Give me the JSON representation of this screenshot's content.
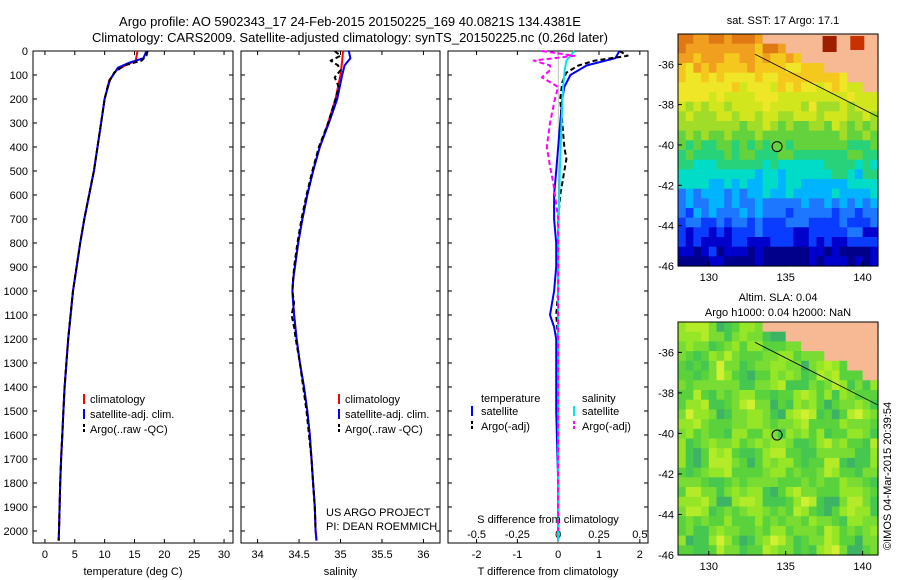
{
  "header": {
    "line1": "Argo profile: AO 5902343_17 24-Feb-2015 20150225_169 40.0821S 134.4381E",
    "line2": "Climatology: CARS2009. Satellite-adjusted climatology: synTS_20150225.nc (0.26d later)"
  },
  "depth_ticks": [
    0,
    100,
    200,
    300,
    400,
    500,
    600,
    700,
    800,
    900,
    1000,
    1100,
    1200,
    1300,
    1400,
    1500,
    1600,
    1700,
    1800,
    1900,
    2000
  ],
  "colors": {
    "clim": "#ff0000",
    "sat": "#0000ff",
    "argo": "#000000",
    "cyan": "#00e5ee",
    "magenta": "#ff00ff",
    "land": "#f6b994"
  },
  "chart_data": [
    {
      "type": "line",
      "id": "temperature",
      "xlabel": "temperature (deg C)",
      "xlim": [
        -2,
        31.5
      ],
      "ylim": [
        2050,
        0
      ],
      "xticks": [
        0,
        5,
        10,
        15,
        20,
        25,
        30
      ],
      "legend": [
        "climatology",
        "satellite-adj. clim.",
        "Argo(..raw -QC)"
      ],
      "series": [
        {
          "name": "climatology",
          "depth": [
            0,
            40,
            60,
            80,
            120,
            200,
            300,
            400,
            500,
            600,
            700,
            800,
            900,
            1000,
            1100,
            1200,
            1300,
            1400,
            1500,
            1600,
            1700,
            1800,
            1900,
            2000,
            2040
          ],
          "values": [
            15.5,
            15.2,
            13.5,
            12,
            10.8,
            10,
            9.4,
            8.8,
            8.2,
            7.4,
            6.6,
            5.9,
            5.3,
            4.7,
            4.3,
            3.9,
            3.6,
            3.3,
            3.1,
            2.9,
            2.7,
            2.55,
            2.45,
            2.35,
            2.3
          ]
        },
        {
          "name": "satellite-adj. clim.",
          "depth": [
            0,
            30,
            50,
            70,
            120,
            200,
            300,
            400,
            500,
            600,
            700,
            800,
            900,
            1000,
            1100,
            1200,
            1300,
            1400,
            1500,
            1600,
            1700,
            1800,
            1900,
            2000,
            2040
          ],
          "values": [
            17,
            16.5,
            14,
            12.2,
            10.9,
            10,
            9.4,
            8.8,
            8.2,
            7.4,
            6.6,
            5.9,
            5.3,
            4.7,
            4.3,
            3.9,
            3.6,
            3.3,
            3.1,
            2.9,
            2.7,
            2.55,
            2.45,
            2.35,
            2.3
          ]
        },
        {
          "name": "Argo(..raw -QC)",
          "depth": [
            0,
            20,
            40,
            60,
            90,
            130,
            200,
            300,
            400,
            500,
            600,
            700,
            800,
            900,
            1000,
            1100,
            1200,
            1300,
            1400,
            1500,
            1600,
            1700,
            1800,
            1900,
            2000,
            2040
          ],
          "values": [
            17.2,
            17,
            16.2,
            13.3,
            11.6,
            10.7,
            10,
            9.4,
            8.8,
            8.2,
            7.4,
            6.6,
            5.9,
            5.3,
            4.7,
            4.3,
            3.9,
            3.6,
            3.3,
            3.1,
            2.9,
            2.7,
            2.55,
            2.45,
            2.35,
            2.3
          ]
        }
      ]
    },
    {
      "type": "line",
      "id": "salinity",
      "xlabel": "salinity",
      "xlim": [
        33.8,
        36.2
      ],
      "ylim": [
        2050,
        0
      ],
      "xticks": [
        34,
        34.5,
        35,
        35.5,
        36
      ],
      "xticklabels": [
        "34",
        "34.5",
        "35",
        "35.5",
        "36"
      ],
      "legend": [
        "climatology",
        "satellite-adj. clim.",
        "Argo(..raw -QC)"
      ],
      "annotation": [
        "US ARGO PROJECT",
        "PI: DEAN ROEMMICH"
      ],
      "series": [
        {
          "name": "climatology",
          "depth": [
            0,
            40,
            100,
            200,
            300,
            400,
            500,
            600,
            700,
            800,
            900,
            950,
            1000,
            1050,
            1100,
            1200,
            1300,
            1400,
            1500,
            1600,
            1700,
            1800,
            1900,
            2000,
            2040
          ],
          "values": [
            35.03,
            35.02,
            35.0,
            34.94,
            34.85,
            34.75,
            34.67,
            34.6,
            34.54,
            34.49,
            34.45,
            34.43,
            34.42,
            34.43,
            34.44,
            34.47,
            34.51,
            34.56,
            34.6,
            34.63,
            34.65,
            34.67,
            34.69,
            34.7,
            34.71
          ]
        },
        {
          "name": "satellite-adj. clim.",
          "depth": [
            0,
            30,
            60,
            100,
            200,
            300,
            400,
            500,
            600,
            700,
            800,
            900,
            950,
            1000,
            1050,
            1100,
            1200,
            1300,
            1400,
            1500,
            1600,
            1700,
            1800,
            1900,
            2000,
            2040
          ],
          "values": [
            35.1,
            35.12,
            35.05,
            35.02,
            34.96,
            34.86,
            34.75,
            34.67,
            34.6,
            34.54,
            34.49,
            34.45,
            34.43,
            34.42,
            34.43,
            34.44,
            34.47,
            34.51,
            34.56,
            34.6,
            34.63,
            34.65,
            34.67,
            34.69,
            34.7,
            34.71
          ]
        },
        {
          "name": "Argo(..raw -QC)",
          "depth": [
            0,
            20,
            40,
            60,
            80,
            110,
            150,
            200,
            300,
            400,
            500,
            600,
            700,
            800,
            900,
            1000,
            1050,
            1100,
            1150,
            1200,
            1300,
            1400,
            1500,
            1600,
            1700,
            1800,
            1900,
            2000
          ],
          "values": [
            34.93,
            35.0,
            34.88,
            34.97,
            35.0,
            34.93,
            34.98,
            34.94,
            34.85,
            34.74,
            34.66,
            34.59,
            34.53,
            34.48,
            34.44,
            34.42,
            34.44,
            34.41,
            34.44,
            34.46,
            34.51,
            34.55,
            34.59,
            34.62,
            34.65,
            34.67,
            34.69,
            34.7
          ]
        }
      ]
    },
    {
      "type": "line",
      "id": "difference",
      "xlabel": "T difference from climatology",
      "xlabel_top": "S difference from climatology",
      "xlim": [
        -2.7,
        2.2
      ],
      "ylim": [
        2050,
        0
      ],
      "xticks": [
        -2,
        -1,
        0,
        1,
        2
      ],
      "xticks_top": [
        -0.5,
        -0.25,
        0,
        0.25,
        0.5
      ],
      "legend": {
        "temperature_heading": "temperature",
        "salinity_heading": "salinity",
        "items": [
          "satellite",
          "Argo(-adj)",
          "satellite",
          "Argo(-adj)"
        ]
      },
      "series": [
        {
          "name": "temperature satellite",
          "color": "sat",
          "depth": [
            0,
            30,
            60,
            100,
            150,
            200,
            300,
            400,
            500,
            600,
            700,
            800,
            900,
            1000,
            1100,
            1150,
            1200,
            1300,
            1500,
            1800,
            2040
          ],
          "values": [
            1.5,
            1.4,
            0.7,
            0.3,
            0.15,
            0.1,
            0.05,
            0.0,
            -0.05,
            -0.1,
            -0.1,
            -0.05,
            -0.05,
            -0.1,
            -0.2,
            -0.1,
            -0.05,
            -0.05,
            -0.05,
            0.0,
            0.0
          ]
        },
        {
          "name": "temperature Argo(-adj)",
          "color": "argo",
          "depth": [
            0,
            20,
            40,
            60,
            90,
            130,
            200,
            300,
            400,
            450,
            500,
            550,
            600,
            700,
            800,
            900,
            1000,
            1100,
            1200,
            1400,
            1600,
            1800,
            2000
          ],
          "values": [
            1.5,
            1.7,
            0.9,
            0.5,
            0.2,
            0.1,
            0.05,
            0.1,
            0.15,
            0.2,
            0.15,
            0.1,
            0.05,
            0.0,
            0.0,
            0.0,
            0.0,
            -0.05,
            0.0,
            0.0,
            0.0,
            0.0,
            0.0
          ]
        },
        {
          "name": "salinity satellite",
          "color": "cyan",
          "depth": [
            0,
            40,
            80,
            150,
            300,
            500,
            800,
            1100,
            1400,
            1700,
            2040
          ],
          "values": [
            0.1,
            0.05,
            0.04,
            0.03,
            0.02,
            0.01,
            0.0,
            0.0,
            0.0,
            0.0,
            0.0
          ]
        },
        {
          "name": "salinity Argo(-adj)",
          "color": "magenta",
          "depth": [
            0,
            20,
            40,
            60,
            80,
            110,
            150,
            200,
            300,
            400,
            480,
            550,
            700,
            900,
            1200,
            1500,
            1800,
            2000
          ],
          "values": [
            -0.1,
            0.1,
            -0.15,
            -0.05,
            -0.05,
            -0.1,
            0.0,
            -0.02,
            -0.05,
            -0.07,
            -0.05,
            -0.03,
            0.0,
            0.0,
            0.0,
            0.0,
            0.0,
            0.0
          ]
        }
      ]
    }
  ],
  "maps": {
    "sst": {
      "title": "sat. SST: 17 Argo: 17.1",
      "xticks": [
        130,
        135,
        140
      ],
      "yticks": [
        -36,
        -38,
        -40,
        -42,
        -44,
        -46
      ],
      "lon": [
        128,
        141
      ],
      "lat": [
        -34.5,
        -46
      ],
      "marker": [
        134.44,
        -40.08
      ]
    },
    "sla": {
      "title_line1": "Altim. SLA: 0.04",
      "title_line2": "Argo h1000: 0.04 h2000: NaN",
      "xticks": [
        130,
        135,
        140
      ],
      "yticks": [
        -36,
        -38,
        -40,
        -42,
        -44,
        -46
      ],
      "lon": [
        128,
        141
      ],
      "lat": [
        -34.5,
        -46
      ],
      "marker": [
        134.44,
        -40.08
      ]
    }
  },
  "footer": {
    "stamp": "©IMOS 04-Mar-2015 20:39:54"
  }
}
